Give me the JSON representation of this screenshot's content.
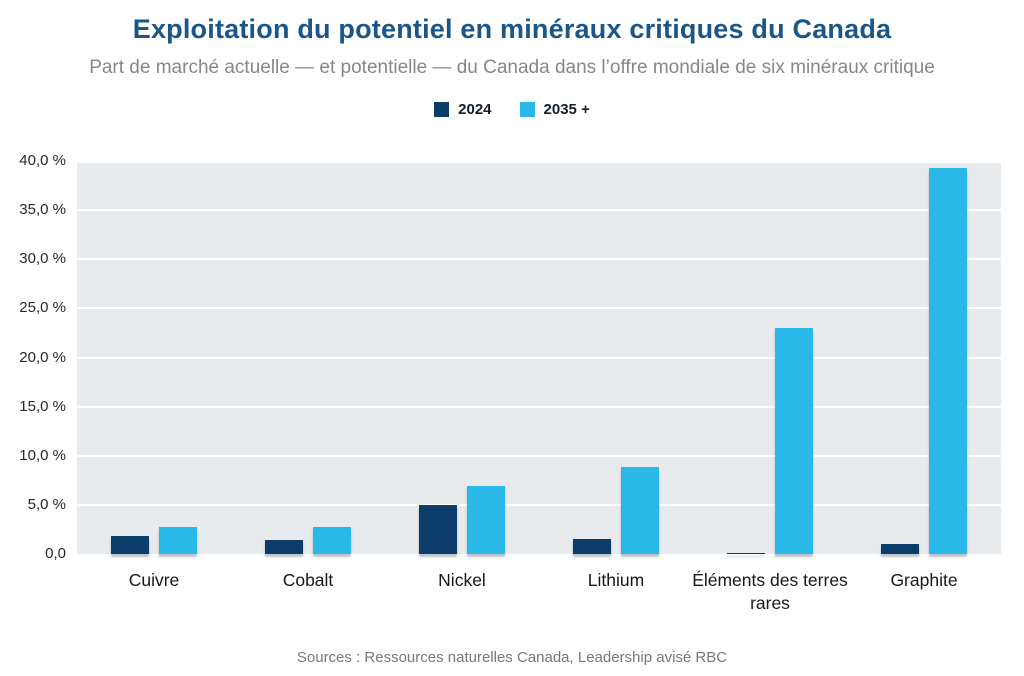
{
  "header": {
    "title": "Exploitation du potentiel en minéraux critiques du Canada",
    "subtitle": "Part de marché actuelle — et potentielle — du Canada dans l’offre mondiale de six minéraux critique"
  },
  "source": "Sources : Ressources naturelles Canada, Leadership avisé RBC",
  "colors": {
    "title": "#1a5687",
    "subtitle": "#85878b",
    "plot_background": "#e8ebee",
    "gridline": "#ffffff",
    "series_2024": "#0c3c69",
    "series_2035": "#29b8e8"
  },
  "chart_data": {
    "type": "bar",
    "title": "Exploitation du potentiel en minéraux critiques du Canada",
    "subtitle": "Part de marché actuelle — et potentielle — du Canada dans l’offre mondiale de six minéraux critique",
    "categories": [
      "Cuivre",
      "Cobalt",
      "Nickel",
      "Lithium",
      "Éléments des terres rares",
      "Graphite"
    ],
    "series": [
      {
        "name": "2024",
        "color": "#0c3c69",
        "values": [
          1.8,
          1.4,
          5.0,
          1.5,
          0.1,
          1.0
        ]
      },
      {
        "name": "2035 +",
        "color": "#29b8e8",
        "values": [
          2.8,
          2.8,
          6.9,
          8.9,
          23.0,
          39.3
        ]
      }
    ],
    "ylabel": "",
    "xlabel": "",
    "ylim": [
      0,
      40
    ],
    "ytick_step": 5,
    "ytick_labels": [
      "0,0",
      "5,0 %",
      "10,0 %",
      "15,0 %",
      "20,0 %",
      "25,0 %",
      "30,0 %",
      "35,0 %",
      "40,0 %"
    ],
    "grid": "horizontal",
    "legend_position": "top"
  }
}
